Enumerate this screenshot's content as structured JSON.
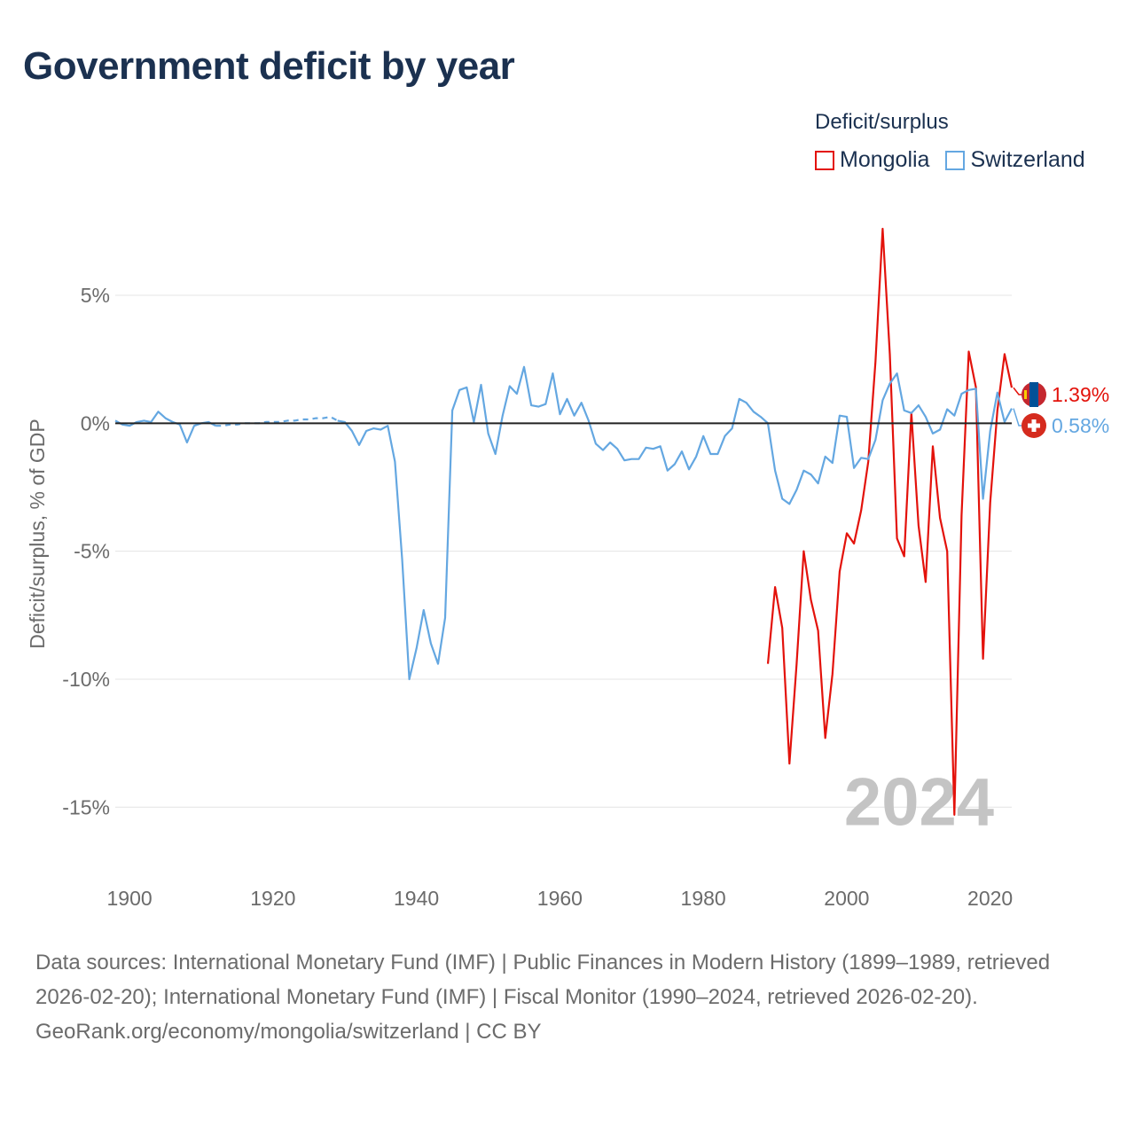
{
  "chart_data": {
    "type": "line",
    "title": "Government deficit by year",
    "ylabel": "Deficit/surplus, % of GDP",
    "xlabel": "",
    "xlim": [
      1899,
      2024
    ],
    "ylim": [
      -17,
      8.5
    ],
    "x_ticks": [
      1900,
      1920,
      1940,
      1960,
      1980,
      2000,
      2020
    ],
    "x_tick_labels": [
      "1900",
      "1920",
      "1940",
      "1960",
      "1980",
      "2000",
      "2020"
    ],
    "y_ticks": [
      5,
      0,
      -5,
      -10,
      -15
    ],
    "y_tick_labels": [
      "5%",
      "0%",
      "-5%",
      "-10%",
      "-15%"
    ],
    "legend_title": "Deficit/surplus",
    "legend_position": "top-right",
    "year_marker": "2024",
    "series": [
      {
        "name": "Mongolia",
        "color": "#e3120b",
        "end_label": "1.39%",
        "points": [
          [
            1990,
            -9.4
          ],
          [
            1991,
            -6.4
          ],
          [
            1992,
            -8.0
          ],
          [
            1993,
            -13.3
          ],
          [
            1994,
            -9.4
          ],
          [
            1995,
            -5.0
          ],
          [
            1996,
            -6.9
          ],
          [
            1997,
            -8.1
          ],
          [
            1998,
            -12.3
          ],
          [
            1999,
            -9.8
          ],
          [
            2000,
            -5.8
          ],
          [
            2001,
            -4.3
          ],
          [
            2002,
            -4.7
          ],
          [
            2003,
            -3.4
          ],
          [
            2004,
            -1.5
          ],
          [
            2005,
            2.4
          ],
          [
            2006,
            7.6
          ],
          [
            2007,
            2.7
          ],
          [
            2008,
            -4.5
          ],
          [
            2009,
            -5.2
          ],
          [
            2010,
            0.4
          ],
          [
            2011,
            -4.0
          ],
          [
            2012,
            -6.2
          ],
          [
            2013,
            -0.9
          ],
          [
            2014,
            -3.7
          ],
          [
            2015,
            -5.0
          ],
          [
            2016,
            -15.3
          ],
          [
            2017,
            -3.6
          ],
          [
            2018,
            2.8
          ],
          [
            2019,
            1.4
          ],
          [
            2020,
            -9.2
          ],
          [
            2021,
            -3.1
          ],
          [
            2022,
            0.5
          ],
          [
            2023,
            2.7
          ],
          [
            2024,
            1.39
          ]
        ]
      },
      {
        "name": "Switzerland",
        "color": "#64a7e1",
        "end_label": "0.58%",
        "points": [
          [
            1899,
            0.1
          ],
          [
            1900,
            -0.05
          ],
          [
            1901,
            -0.1
          ],
          [
            1902,
            0.05
          ],
          [
            1903,
            0.1
          ],
          [
            1904,
            0.05
          ],
          [
            1905,
            0.45
          ],
          [
            1906,
            0.2
          ],
          [
            1907,
            0.05
          ],
          [
            1908,
            -0.05
          ],
          [
            1909,
            -0.75
          ],
          [
            1910,
            -0.1
          ],
          [
            1911,
            0.0
          ],
          [
            1912,
            0.05
          ],
          [
            1913,
            -0.1
          ],
          [
            1914,
            -0.1
          ],
          [
            1915,
            -0.05
          ],
          [
            1916,
            -0.05
          ],
          [
            1917,
            0.0
          ],
          [
            1918,
            0.0
          ],
          [
            1919,
            0.0
          ],
          [
            1920,
            0.05
          ],
          [
            1921,
            0.05
          ],
          [
            1922,
            0.05
          ],
          [
            1923,
            0.1
          ],
          [
            1924,
            0.1
          ],
          [
            1925,
            0.15
          ],
          [
            1926,
            0.15
          ],
          [
            1927,
            0.2
          ],
          [
            1928,
            0.2
          ],
          [
            1929,
            0.25
          ],
          [
            1930,
            0.1
          ],
          [
            1931,
            0.05
          ],
          [
            1932,
            -0.3
          ],
          [
            1933,
            -0.85
          ],
          [
            1934,
            -0.3
          ],
          [
            1935,
            -0.2
          ],
          [
            1936,
            -0.25
          ],
          [
            1937,
            -0.1
          ],
          [
            1938,
            -1.5
          ],
          [
            1939,
            -5.3
          ],
          [
            1940,
            -10.0
          ],
          [
            1941,
            -8.8
          ],
          [
            1942,
            -7.3
          ],
          [
            1943,
            -8.6
          ],
          [
            1944,
            -9.4
          ],
          [
            1945,
            -7.6
          ],
          [
            1946,
            0.5
          ],
          [
            1947,
            1.3
          ],
          [
            1948,
            1.4
          ],
          [
            1949,
            0.05
          ],
          [
            1950,
            1.5
          ],
          [
            1951,
            -0.4
          ],
          [
            1952,
            -1.2
          ],
          [
            1953,
            0.3
          ],
          [
            1954,
            1.45
          ],
          [
            1955,
            1.15
          ],
          [
            1956,
            2.2
          ],
          [
            1957,
            0.7
          ],
          [
            1958,
            0.65
          ],
          [
            1959,
            0.75
          ],
          [
            1960,
            1.95
          ],
          [
            1961,
            0.35
          ],
          [
            1962,
            0.95
          ],
          [
            1963,
            0.3
          ],
          [
            1964,
            0.8
          ],
          [
            1965,
            0.1
          ],
          [
            1966,
            -0.8
          ],
          [
            1967,
            -1.05
          ],
          [
            1968,
            -0.75
          ],
          [
            1969,
            -1.0
          ],
          [
            1970,
            -1.45
          ],
          [
            1971,
            -1.4
          ],
          [
            1972,
            -1.4
          ],
          [
            1973,
            -0.95
          ],
          [
            1974,
            -1.0
          ],
          [
            1975,
            -0.9
          ],
          [
            1976,
            -1.85
          ],
          [
            1977,
            -1.6
          ],
          [
            1978,
            -1.1
          ],
          [
            1979,
            -1.8
          ],
          [
            1980,
            -1.3
          ],
          [
            1981,
            -0.5
          ],
          [
            1982,
            -1.2
          ],
          [
            1983,
            -1.2
          ],
          [
            1984,
            -0.5
          ],
          [
            1985,
            -0.2
          ],
          [
            1986,
            0.95
          ],
          [
            1987,
            0.8
          ],
          [
            1988,
            0.45
          ],
          [
            1989,
            0.25
          ],
          [
            1990,
            0.0
          ],
          [
            1991,
            -1.85
          ],
          [
            1992,
            -2.95
          ],
          [
            1993,
            -3.15
          ],
          [
            1994,
            -2.6
          ],
          [
            1995,
            -1.85
          ],
          [
            1996,
            -2.0
          ],
          [
            1997,
            -2.35
          ],
          [
            1998,
            -1.3
          ],
          [
            1999,
            -1.55
          ],
          [
            2000,
            0.3
          ],
          [
            2001,
            0.25
          ],
          [
            2002,
            -1.75
          ],
          [
            2003,
            -1.35
          ],
          [
            2004,
            -1.4
          ],
          [
            2005,
            -0.65
          ],
          [
            2006,
            0.9
          ],
          [
            2007,
            1.55
          ],
          [
            2008,
            1.95
          ],
          [
            2009,
            0.5
          ],
          [
            2010,
            0.4
          ],
          [
            2011,
            0.7
          ],
          [
            2012,
            0.25
          ],
          [
            2013,
            -0.4
          ],
          [
            2014,
            -0.25
          ],
          [
            2015,
            0.55
          ],
          [
            2016,
            0.3
          ],
          [
            2017,
            1.15
          ],
          [
            2018,
            1.3
          ],
          [
            2019,
            1.35
          ],
          [
            2020,
            -2.95
          ],
          [
            2021,
            -0.3
          ],
          [
            2022,
            1.2
          ],
          [
            2023,
            0.05
          ],
          [
            2024,
            0.58
          ]
        ]
      }
    ]
  },
  "footer": {
    "sources": "Data sources: International Monetary Fund (IMF) | Public Finances in Modern History (1899–1989, retrieved 2026-02-20); International Monetary Fund (IMF) | Fiscal Monitor (1990–2024, retrieved 2026-02-20).",
    "credit": "GeoRank.org/economy/mongolia/switzerland | CC BY"
  }
}
